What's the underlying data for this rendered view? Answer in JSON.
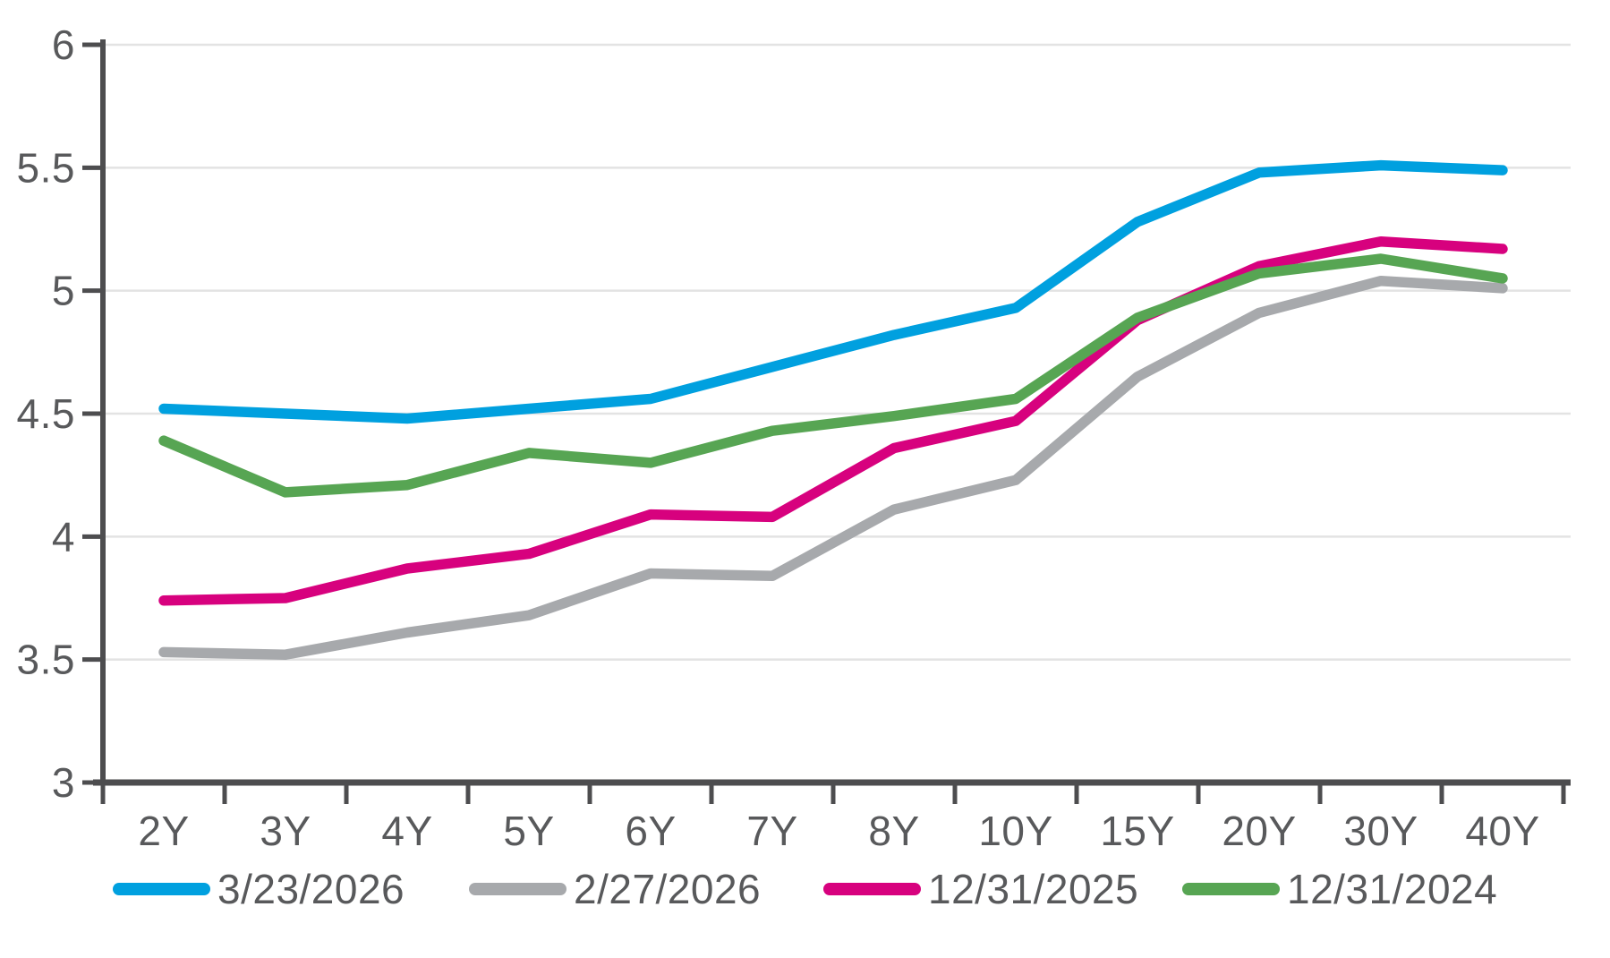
{
  "chart_data": {
    "type": "line",
    "title": "",
    "categories": [
      "2Y",
      "3Y",
      "4Y",
      "5Y",
      "6Y",
      "7Y",
      "8Y",
      "10Y",
      "15Y",
      "20Y",
      "30Y",
      "40Y"
    ],
    "series": [
      {
        "name": "3/23/2026",
        "color": "#00A0DF",
        "values": [
          4.52,
          4.5,
          4.48,
          4.52,
          4.56,
          4.69,
          4.82,
          4.93,
          5.28,
          5.48,
          5.51,
          5.49
        ]
      },
      {
        "name": "2/27/2026",
        "color": "#A7A9AC",
        "values": [
          3.53,
          3.52,
          3.61,
          3.68,
          3.85,
          3.84,
          4.11,
          4.23,
          4.65,
          4.91,
          5.04,
          5.01
        ]
      },
      {
        "name": "12/31/2025",
        "color": "#D7017E",
        "values": [
          3.74,
          3.75,
          3.87,
          3.93,
          4.09,
          4.08,
          4.36,
          4.47,
          4.88,
          5.1,
          5.2,
          5.17
        ]
      },
      {
        "name": "12/31/2024",
        "color": "#57A553",
        "values": [
          4.39,
          4.18,
          4.21,
          4.34,
          4.3,
          4.43,
          4.49,
          4.56,
          4.89,
          5.07,
          5.13,
          5.05
        ]
      }
    ],
    "y_ticks": [
      {
        "value": 6,
        "label": "6"
      },
      {
        "value": 5.5,
        "label": "5.5"
      },
      {
        "value": 5,
        "label": "5"
      },
      {
        "value": 4.5,
        "label": "4.5"
      },
      {
        "value": 4,
        "label": "4"
      },
      {
        "value": 3.5,
        "label": "3.5"
      },
      {
        "value": 3,
        "label": "3"
      }
    ],
    "ylim": [
      3,
      6
    ],
    "xlabel": "",
    "ylabel": "",
    "grid": true,
    "legend_position": "bottom",
    "legend": [
      "3/23/2026",
      "2/27/2026",
      "12/31/2025",
      "12/31/2024"
    ]
  },
  "style": {
    "axis_color": "#4D4D4F",
    "grid_color": "#E3E3E3",
    "label_color": "#58595B",
    "background": "#FFFFFF"
  }
}
